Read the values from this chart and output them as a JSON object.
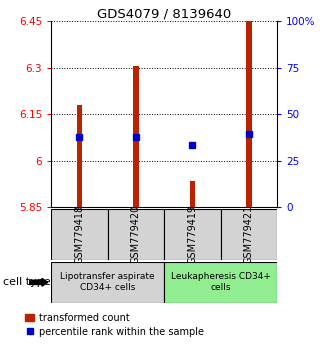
{
  "title": "GDS4079 / 8139640",
  "samples": [
    "GSM779418",
    "GSM779420",
    "GSM779419",
    "GSM779421"
  ],
  "red_values": [
    6.18,
    6.305,
    5.935,
    6.45
  ],
  "blue_values": [
    6.075,
    6.075,
    6.05,
    6.085
  ],
  "ylim_left": [
    5.85,
    6.45
  ],
  "ylim_right": [
    0,
    100
  ],
  "yticks_left": [
    5.85,
    6.0,
    6.15,
    6.3,
    6.45
  ],
  "yticks_right": [
    0,
    25,
    50,
    75,
    100
  ],
  "ytick_labels_left": [
    "5.85",
    "6",
    "6.15",
    "6.3",
    "6.45"
  ],
  "ytick_labels_right": [
    "0",
    "25",
    "50",
    "75",
    "100%"
  ],
  "groups": [
    {
      "label": "Lipotransfer aspirate\nCD34+ cells",
      "start": 0,
      "end": 2,
      "color": "#d3d3d3"
    },
    {
      "label": "Leukapheresis CD34+\ncells",
      "start": 2,
      "end": 4,
      "color": "#90ee90"
    }
  ],
  "cell_type_label": "cell type",
  "legend_red": "transformed count",
  "legend_blue": "percentile rank within the sample",
  "bar_color": "#bb2200",
  "dot_color": "#0000cc",
  "base_value": 5.85,
  "bar_width": 0.1,
  "dot_size": 5
}
